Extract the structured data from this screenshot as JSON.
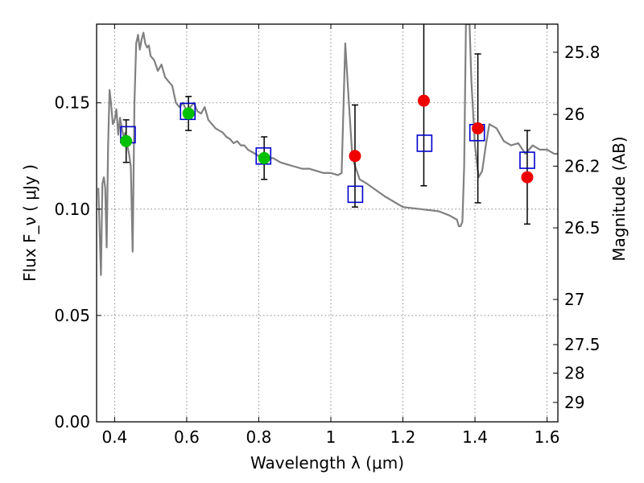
{
  "chart_data": {
    "type": "scatter",
    "title": "",
    "xlabel": "Wavelength  λ (μm)",
    "ylabel": "Flux  F_ν  ( μJy )",
    "y2label": "Magnitude (AB)",
    "xlim": [
      0.35,
      1.63
    ],
    "ylim": [
      0.0,
      0.187
    ],
    "grid": true,
    "legend": "none",
    "x_ticks": [
      0.4,
      0.6,
      0.8,
      1.0,
      1.2,
      1.4,
      1.6
    ],
    "x_tick_labels": [
      "0.4",
      "0.6",
      "0.8",
      "1",
      "1.2",
      "1.4",
      "1.6"
    ],
    "y_ticks": [
      0.0,
      0.05,
      0.1,
      0.15
    ],
    "y_tick_labels": [
      "0.00",
      "0.05",
      "0.10",
      "0.15"
    ],
    "y2_ticks": [
      {
        "label": "25.8",
        "mag": 25.8
      },
      {
        "label": "26",
        "mag": 26.0
      },
      {
        "label": "26.2",
        "mag": 26.2
      },
      {
        "label": "26.5",
        "mag": 26.5
      },
      {
        "label": "27",
        "mag": 27.0
      },
      {
        "label": "27.5",
        "mag": 27.5
      },
      {
        "label": "28",
        "mag": 28.0
      },
      {
        "label": "29",
        "mag": 29.0
      }
    ],
    "colors": {
      "model": "#808080",
      "green": "#00c000",
      "red": "#ee0000",
      "square": "#0000cc",
      "errorbar": "#000000"
    },
    "model_spectrum": {
      "x": [
        0.355,
        0.362,
        0.366,
        0.37,
        0.374,
        0.378,
        0.382,
        0.386,
        0.39,
        0.395,
        0.4,
        0.405,
        0.41,
        0.415,
        0.42,
        0.425,
        0.43,
        0.435,
        0.44,
        0.445,
        0.45,
        0.455,
        0.46,
        0.465,
        0.47,
        0.475,
        0.48,
        0.485,
        0.49,
        0.495,
        0.5,
        0.51,
        0.52,
        0.53,
        0.54,
        0.55,
        0.56,
        0.57,
        0.58,
        0.59,
        0.6,
        0.61,
        0.62,
        0.63,
        0.64,
        0.65,
        0.66,
        0.67,
        0.68,
        0.69,
        0.7,
        0.71,
        0.72,
        0.73,
        0.74,
        0.75,
        0.76,
        0.77,
        0.78,
        0.79,
        0.8,
        0.82,
        0.84,
        0.86,
        0.88,
        0.9,
        0.92,
        0.94,
        0.96,
        0.98,
        1.0,
        1.02,
        1.03,
        1.04,
        1.05,
        1.06,
        1.08,
        1.1,
        1.15,
        1.2,
        1.25,
        1.3,
        1.33,
        1.35,
        1.355,
        1.36,
        1.365,
        1.37,
        1.375,
        1.38,
        1.385,
        1.39,
        1.4,
        1.41,
        1.42,
        1.43,
        1.44,
        1.46,
        1.48,
        1.5,
        1.52,
        1.54,
        1.56,
        1.58,
        1.6,
        1.62,
        1.63
      ],
      "y": [
        0.11,
        0.069,
        0.112,
        0.115,
        0.11,
        0.082,
        0.13,
        0.156,
        0.15,
        0.14,
        0.142,
        0.147,
        0.135,
        0.143,
        0.138,
        0.134,
        0.136,
        0.13,
        0.126,
        0.12,
        0.08,
        0.15,
        0.178,
        0.182,
        0.175,
        0.18,
        0.183,
        0.178,
        0.176,
        0.177,
        0.172,
        0.17,
        0.165,
        0.168,
        0.162,
        0.16,
        0.158,
        0.15,
        0.148,
        0.15,
        0.146,
        0.148,
        0.15,
        0.146,
        0.145,
        0.148,
        0.142,
        0.14,
        0.138,
        0.137,
        0.136,
        0.134,
        0.133,
        0.131,
        0.132,
        0.13,
        0.13,
        0.128,
        0.127,
        0.126,
        0.125,
        0.124,
        0.124,
        0.122,
        0.121,
        0.12,
        0.119,
        0.119,
        0.118,
        0.117,
        0.117,
        0.116,
        0.117,
        0.178,
        0.15,
        0.124,
        0.114,
        0.112,
        0.106,
        0.101,
        0.1,
        0.099,
        0.097,
        0.095,
        0.092,
        0.092,
        0.094,
        0.12,
        0.187,
        0.187,
        0.187,
        0.16,
        0.13,
        0.115,
        0.118,
        0.13,
        0.14,
        0.138,
        0.132,
        0.13,
        0.131,
        0.126,
        0.13,
        0.128,
        0.128,
        0.126,
        0.126
      ]
    },
    "series": [
      {
        "marker": "circle",
        "color": "green",
        "points": [
          {
            "x": 0.432,
            "y": 0.132,
            "err": 0.01
          },
          {
            "x": 0.605,
            "y": 0.145,
            "err": 0.008
          },
          {
            "x": 0.815,
            "y": 0.124,
            "err": 0.01
          }
        ]
      },
      {
        "marker": "circle",
        "color": "red",
        "points": [
          {
            "x": 1.067,
            "y": 0.125,
            "err": 0.024
          },
          {
            "x": 1.258,
            "y": 0.151,
            "err": 0.04
          },
          {
            "x": 1.408,
            "y": 0.138,
            "err": 0.035
          },
          {
            "x": 1.545,
            "y": 0.115,
            "err": 0.022
          }
        ]
      },
      {
        "marker": "square",
        "color": "square",
        "points": [
          {
            "x": 0.437,
            "y": 0.135
          },
          {
            "x": 0.603,
            "y": 0.146
          },
          {
            "x": 0.813,
            "y": 0.125
          },
          {
            "x": 1.068,
            "y": 0.107
          },
          {
            "x": 1.26,
            "y": 0.131
          },
          {
            "x": 1.406,
            "y": 0.136
          },
          {
            "x": 1.545,
            "y": 0.123
          }
        ]
      }
    ]
  }
}
